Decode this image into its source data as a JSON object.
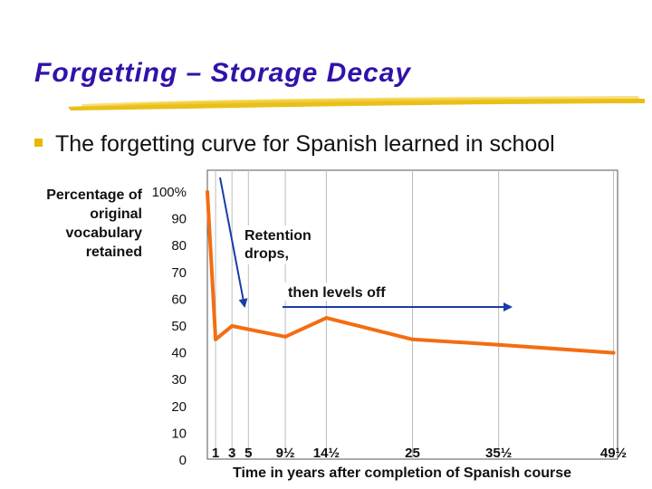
{
  "slide": {
    "title": "Forgetting – Storage Decay",
    "bullet": "The forgetting curve for Spanish learned in school"
  },
  "colors": {
    "title": "#3311aa",
    "bullet": "#e7b800",
    "curve": "#f36d12",
    "arrow": "#1a3aa8"
  },
  "chart_data": {
    "type": "line",
    "title": "",
    "ylabel_lines": [
      "Percentage of",
      "original",
      "vocabulary",
      "retained"
    ],
    "xlabel": "Time in years after completion of Spanish course",
    "ytick_labels": [
      "100%",
      "90",
      "80",
      "70",
      "60",
      "50",
      "40",
      "30",
      "20",
      "10",
      "0"
    ],
    "ytick_values": [
      100,
      90,
      80,
      70,
      60,
      50,
      40,
      30,
      20,
      10,
      0
    ],
    "xtick_labels": [
      "1",
      "3",
      "5",
      "9½",
      "14½",
      "25",
      "35½",
      "49½"
    ],
    "xtick_values": [
      1,
      3,
      5,
      9.5,
      14.5,
      25,
      35.5,
      49.5
    ],
    "ylim": [
      0,
      100
    ],
    "xlim": [
      0,
      50
    ],
    "grid": "vertical",
    "series": [
      {
        "x": [
          0,
          1,
          3,
          9.5,
          14.5,
          25,
          35.5,
          49.5
        ],
        "y": [
          100,
          45,
          50,
          46,
          53,
          45,
          43,
          40
        ]
      }
    ],
    "annotations": [
      {
        "text_lines": [
          "Retention",
          "drops,"
        ]
      },
      {
        "text_lines": [
          "then levels off"
        ]
      }
    ]
  }
}
